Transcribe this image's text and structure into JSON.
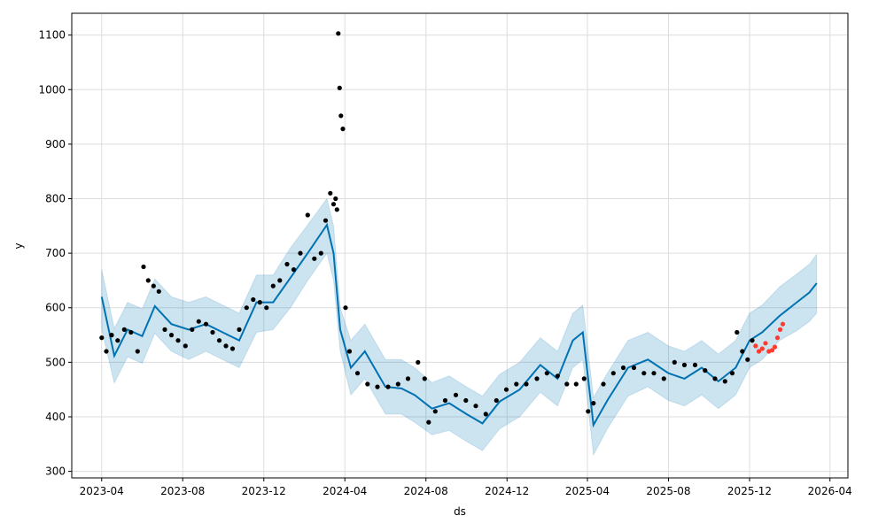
{
  "chart_data": {
    "type": "line",
    "title": "",
    "xlabel": "ds",
    "ylabel": "y",
    "grid": true,
    "colors": {
      "forecast": "#0072B2",
      "interval": "#0072B2",
      "actual": "#000000",
      "holdout": "#FF3B30"
    },
    "xlim": [
      "2023-02-15",
      "2026-04-28"
    ],
    "ylim": [
      288,
      1140
    ],
    "x_ticks": [
      "2023-04",
      "2023-08",
      "2023-12",
      "2024-04",
      "2024-08",
      "2024-12",
      "2025-04",
      "2025-08",
      "2025-12",
      "2026-04"
    ],
    "y_ticks": [
      300,
      400,
      500,
      600,
      700,
      800,
      900,
      1000,
      1100
    ],
    "forecast": {
      "x": [
        "2023-04-01",
        "2023-04-20",
        "2023-05-10",
        "2023-06-01",
        "2023-06-20",
        "2023-07-15",
        "2023-08-10",
        "2023-09-05",
        "2023-09-30",
        "2023-10-25",
        "2023-11-20",
        "2023-12-15",
        "2024-01-10",
        "2024-02-05",
        "2024-03-05",
        "2024-03-15",
        "2024-03-25",
        "2024-04-10",
        "2024-05-01",
        "2024-06-01",
        "2024-06-25",
        "2024-07-15",
        "2024-08-10",
        "2024-09-05",
        "2024-10-01",
        "2024-10-25",
        "2024-11-20",
        "2024-12-20",
        "2025-01-20",
        "2025-02-15",
        "2025-03-10",
        "2025-03-25",
        "2025-04-10",
        "2025-05-01",
        "2025-06-01",
        "2025-07-01",
        "2025-08-01",
        "2025-08-25",
        "2025-09-20",
        "2025-10-15",
        "2025-11-10",
        "2025-12-01",
        "2025-12-20",
        "2026-01-15",
        "2026-02-10",
        "2026-03-01",
        "2026-03-12"
      ],
      "yhat": [
        620,
        512,
        560,
        548,
        603,
        570,
        560,
        570,
        555,
        540,
        610,
        610,
        655,
        700,
        752,
        700,
        560,
        490,
        520,
        455,
        452,
        440,
        415,
        425,
        405,
        388,
        428,
        450,
        495,
        470,
        540,
        555,
        385,
        430,
        490,
        505,
        480,
        470,
        490,
        465,
        490,
        540,
        555,
        585,
        610,
        628,
        645
      ],
      "lower": [
        560,
        462,
        510,
        498,
        553,
        520,
        505,
        520,
        505,
        490,
        555,
        560,
        600,
        650,
        700,
        650,
        520,
        440,
        470,
        405,
        405,
        390,
        367,
        375,
        355,
        338,
        378,
        400,
        445,
        420,
        490,
        505,
        330,
        378,
        438,
        455,
        430,
        420,
        440,
        415,
        440,
        490,
        505,
        540,
        558,
        575,
        590
      ],
      "upper": [
        670,
        562,
        610,
        598,
        653,
        620,
        610,
        620,
        605,
        590,
        660,
        660,
        710,
        752,
        800,
        750,
        600,
        540,
        570,
        505,
        505,
        490,
        463,
        475,
        455,
        438,
        478,
        500,
        545,
        520,
        590,
        605,
        435,
        480,
        540,
        555,
        530,
        520,
        540,
        515,
        540,
        590,
        605,
        638,
        662,
        680,
        698
      ]
    },
    "actual": {
      "x": [
        "2023-04-01",
        "2023-04-08",
        "2023-04-16",
        "2023-04-25",
        "2023-05-05",
        "2023-05-15",
        "2023-05-25",
        "2023-06-03",
        "2023-06-10",
        "2023-06-18",
        "2023-06-26",
        "2023-07-05",
        "2023-07-15",
        "2023-07-25",
        "2023-08-05",
        "2023-08-15",
        "2023-08-25",
        "2023-09-05",
        "2023-09-15",
        "2023-09-25",
        "2023-10-05",
        "2023-10-15",
        "2023-10-25",
        "2023-11-05",
        "2023-11-15",
        "2023-11-25",
        "2023-12-05",
        "2023-12-15",
        "2023-12-25",
        "2024-01-05",
        "2024-01-15",
        "2024-01-25",
        "2024-02-05",
        "2024-02-15",
        "2024-02-25",
        "2024-03-03",
        "2024-03-10",
        "2024-03-15",
        "2024-03-18",
        "2024-03-20",
        "2024-03-22",
        "2024-03-24",
        "2024-03-26",
        "2024-03-29",
        "2024-04-02",
        "2024-04-08",
        "2024-04-20",
        "2024-05-05",
        "2024-05-20",
        "2024-06-05",
        "2024-06-20",
        "2024-07-05",
        "2024-07-20",
        "2024-07-30",
        "2024-08-05",
        "2024-08-15",
        "2024-08-30",
        "2024-09-15",
        "2024-09-30",
        "2024-10-15",
        "2024-10-30",
        "2024-11-15",
        "2024-11-30",
        "2024-12-15",
        "2024-12-30",
        "2025-01-15",
        "2025-01-30",
        "2025-02-15",
        "2025-03-01",
        "2025-03-15",
        "2025-03-27",
        "2025-04-02",
        "2025-04-10",
        "2025-04-25",
        "2025-05-10",
        "2025-05-25",
        "2025-06-10",
        "2025-06-25",
        "2025-07-10",
        "2025-07-25",
        "2025-08-10",
        "2025-08-25",
        "2025-09-10",
        "2025-09-25",
        "2025-10-10",
        "2025-10-25",
        "2025-11-05",
        "2025-11-12",
        "2025-11-20",
        "2025-11-28",
        "2025-12-05"
      ],
      "y": [
        545,
        520,
        550,
        540,
        560,
        555,
        520,
        675,
        650,
        640,
        630,
        560,
        550,
        540,
        530,
        560,
        575,
        570,
        555,
        540,
        530,
        525,
        560,
        600,
        615,
        610,
        600,
        640,
        650,
        680,
        670,
        700,
        770,
        690,
        700,
        760,
        810,
        790,
        800,
        780,
        1103,
        1003,
        952,
        928,
        600,
        520,
        480,
        460,
        455,
        455,
        460,
        470,
        500,
        470,
        390,
        410,
        430,
        440,
        430,
        420,
        405,
        430,
        450,
        460,
        460,
        470,
        480,
        475,
        460,
        460,
        470,
        410,
        425,
        460,
        480,
        490,
        490,
        480,
        480,
        470,
        500,
        495,
        495,
        485,
        470,
        465,
        480,
        555,
        520,
        505,
        540
      ]
    },
    "holdout": {
      "x": [
        "2025-12-10",
        "2025-12-15",
        "2025-12-20",
        "2025-12-25",
        "2025-12-30",
        "2026-01-04",
        "2026-01-08",
        "2026-01-12",
        "2026-01-16",
        "2026-01-20"
      ],
      "y": [
        530,
        520,
        525,
        535,
        520,
        522,
        528,
        545,
        560,
        570
      ]
    }
  }
}
